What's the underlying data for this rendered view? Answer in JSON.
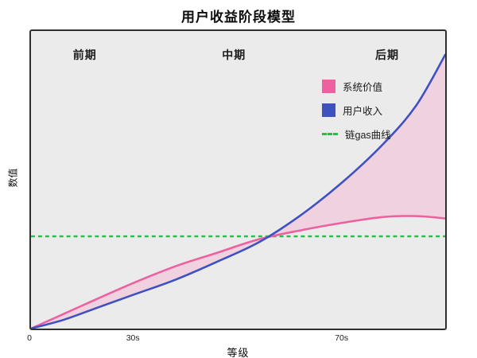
{
  "chart_data": {
    "type": "line",
    "title": "用户收益阶段模型",
    "xlabel": "等级",
    "ylabel": "数值",
    "plot_bg": "#ebebeb",
    "grid": false,
    "legend_position": "upper-right-inside",
    "phases": [
      "前期",
      "中期",
      "后期"
    ],
    "x_ticks": [
      {
        "label": "0",
        "pos": 0.0
      },
      {
        "label": "30s",
        "pos": 0.248
      },
      {
        "label": "70s",
        "pos": 0.748
      }
    ],
    "series": [
      {
        "name": "系统价值",
        "color": "#ec619f",
        "points": [
          [
            0,
            0
          ],
          [
            0.08,
            0.05
          ],
          [
            0.16,
            0.1
          ],
          [
            0.25,
            0.155
          ],
          [
            0.35,
            0.21
          ],
          [
            0.45,
            0.255
          ],
          [
            0.55,
            0.3
          ],
          [
            0.65,
            0.33
          ],
          [
            0.75,
            0.355
          ],
          [
            0.85,
            0.375
          ],
          [
            0.93,
            0.378
          ],
          [
            1,
            0.37
          ]
        ]
      },
      {
        "name": "用户收入",
        "color": "#3f51c1",
        "points": [
          [
            0,
            0
          ],
          [
            0.08,
            0.03
          ],
          [
            0.16,
            0.07
          ],
          [
            0.25,
            0.115
          ],
          [
            0.35,
            0.165
          ],
          [
            0.45,
            0.225
          ],
          [
            0.55,
            0.29
          ],
          [
            0.65,
            0.38
          ],
          [
            0.75,
            0.49
          ],
          [
            0.85,
            0.62
          ],
          [
            0.93,
            0.75
          ],
          [
            1,
            0.92
          ]
        ]
      }
    ],
    "gas_line": {
      "name": "链gas曲线",
      "color": "#2eb84d",
      "y": 0.31
    },
    "fill_between": {
      "color": "#f4bcd6",
      "opacity": 0.55
    }
  }
}
